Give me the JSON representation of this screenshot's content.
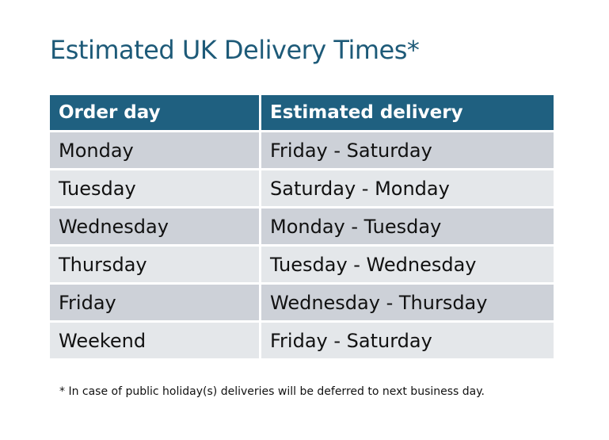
{
  "title": "Estimated UK Delivery Times*",
  "colors": {
    "header": "#1f6080",
    "row_odd": "#cdd1d8",
    "row_even": "#e4e7ea",
    "title": "#1d5a78"
  },
  "table": {
    "headers": [
      "Order day",
      "Estimated delivery"
    ],
    "rows": [
      [
        "Monday",
        "Friday - Saturday"
      ],
      [
        "Tuesday",
        "Saturday - Monday"
      ],
      [
        "Wednesday",
        "Monday - Tuesday"
      ],
      [
        "Thursday",
        "Tuesday - Wednesday"
      ],
      [
        "Friday",
        "Wednesday - Thursday"
      ],
      [
        "Weekend",
        "Friday - Saturday"
      ]
    ]
  },
  "footnote": "* In case of public holiday(s) deliveries will be deferred to next business day."
}
